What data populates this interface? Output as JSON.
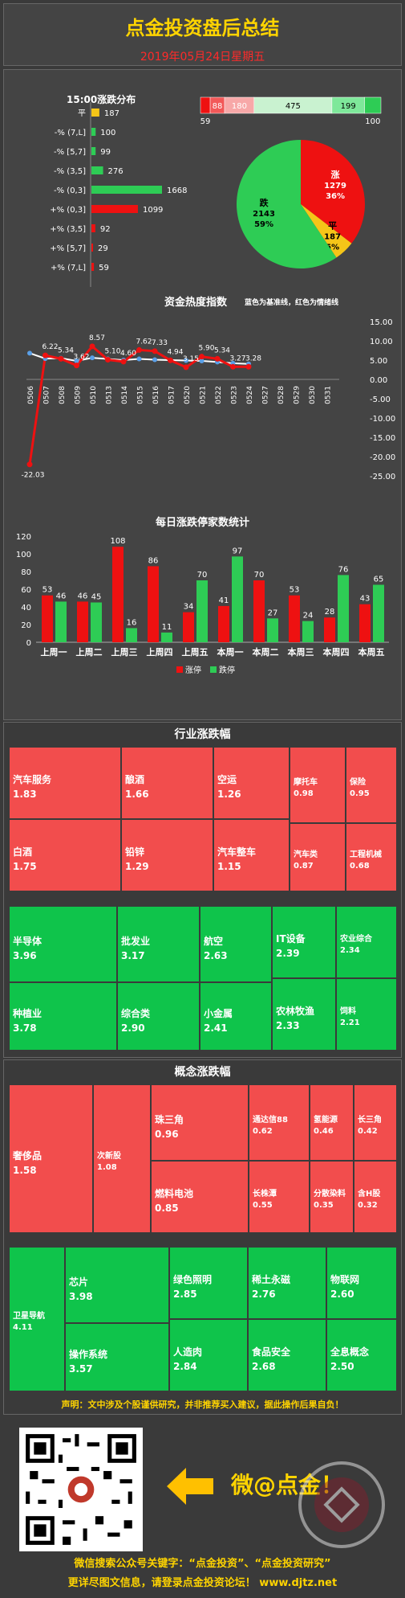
{
  "header": {
    "title": "点金投资盘后总结",
    "date": "2019年05月24日星期五"
  },
  "distribution": {
    "title": "15:00涨跌分布",
    "rows": [
      {
        "label": "平",
        "value": 187,
        "color": "#f5c518"
      },
      {
        "label": "-% (7,L]",
        "value": 100,
        "color": "#2ecc55"
      },
      {
        "label": "-% [5,7]",
        "value": 99,
        "color": "#2ecc55"
      },
      {
        "label": "-% (3,5]",
        "value": 276,
        "color": "#2ecc55"
      },
      {
        "label": "-% (0,3]",
        "value": 1668,
        "color": "#2ecc55"
      },
      {
        "label": "+% (0,3]",
        "value": 1099,
        "color": "#ee1111"
      },
      {
        "label": "+% (3,5]",
        "value": 92,
        "color": "#ee1111"
      },
      {
        "label": "+% [5,7]",
        "value": 29,
        "color": "#ee1111"
      },
      {
        "label": "+% (7,L]",
        "value": 59,
        "color": "#ee1111"
      }
    ],
    "stack": [
      {
        "value": 59,
        "color": "#ee1111",
        "label": "59",
        "pos": "below"
      },
      {
        "value": 88,
        "color": "#f25858",
        "label": "88",
        "pos": "inside"
      },
      {
        "value": 180,
        "color": "#f7a8a8",
        "label": "180",
        "pos": "inside"
      },
      {
        "value": 475,
        "color": "#c9f2d0",
        "label": "475",
        "pos": "inside"
      },
      {
        "value": 199,
        "color": "#7ee89a",
        "label": "199",
        "pos": "inside"
      },
      {
        "value": 100,
        "color": "#2ecc55",
        "label": "100",
        "pos": "below"
      }
    ],
    "pie": [
      {
        "label": "涨",
        "count": "1279",
        "pct": "36%",
        "value": 1279,
        "color": "#ee1111"
      },
      {
        "label": "平",
        "count": "187",
        "pct": "5%",
        "value": 187,
        "color": "#f5c518"
      },
      {
        "label": "跌",
        "count": "2143",
        "pct": "59%",
        "value": 2143,
        "color": "#2ecc55"
      }
    ]
  },
  "heat": {
    "title": "资金热度指数",
    "note": "蓝色为基准线，红色为情绪线",
    "dates": [
      "0506",
      "0507",
      "0508",
      "0509",
      "0510",
      "0513",
      "0514",
      "0515",
      "0516",
      "0517",
      "0520",
      "0521",
      "0522",
      "0523",
      "0524",
      "0527",
      "0528",
      "0529",
      "0530",
      "0531"
    ],
    "red": [
      -22.03,
      6.22,
      5.34,
      3.62,
      8.57,
      5.1,
      4.6,
      7.62,
      7.33,
      4.94,
      3.15,
      5.9,
      5.34,
      3.27,
      3.28
    ],
    "blue": [
      6.8,
      5.4,
      5.5,
      4.8,
      5.6,
      5.3,
      5.0,
      5.3,
      5.1,
      5.0,
      4.9,
      4.8,
      4.5,
      4.2,
      4.0
    ],
    "labels": [
      "-22.03",
      "6.22",
      "5.34",
      "3.62",
      "8.57",
      "5.10",
      "4.60",
      "7.62",
      "7.33",
      "4.94",
      "3.15",
      "5.90",
      "5.34",
      "3.27",
      "3.28"
    ],
    "yticks": [
      "15.00",
      "10.00",
      "5.00",
      "0.00",
      "-5.00",
      "-10.00",
      "-15.00",
      "-20.00",
      "-25.00"
    ]
  },
  "chart_data": {
    "type": "bar",
    "title": "每日涨跌停家数统计",
    "categories": [
      "上周一",
      "上周二",
      "上周三",
      "上周四",
      "上周五",
      "本周一",
      "本周二",
      "本周三",
      "本周四",
      "本周五"
    ],
    "series": [
      {
        "name": "涨停",
        "values": [
          53,
          46,
          108,
          86,
          34,
          41,
          70,
          53,
          28,
          43
        ],
        "color": "#ee1111"
      },
      {
        "name": "跌停",
        "values": [
          46,
          45,
          16,
          11,
          70,
          97,
          27,
          24,
          76,
          65
        ],
        "color": "#2ecc55"
      }
    ],
    "ylim": [
      0,
      120
    ],
    "yticks": [
      "0",
      "20",
      "40",
      "60",
      "80",
      "100",
      "120"
    ]
  },
  "industry": {
    "title": "行业涨跌幅",
    "up": [
      {
        "name": "汽车服务",
        "value": "1.83"
      },
      {
        "name": "白酒",
        "value": "1.75"
      },
      {
        "name": "酿酒",
        "value": "1.66"
      },
      {
        "name": "铅锌",
        "value": "1.29"
      },
      {
        "name": "空运",
        "value": "1.26"
      },
      {
        "name": "汽车整车",
        "value": "1.15"
      },
      {
        "name": "摩托车",
        "value": "0.98"
      },
      {
        "name": "汽车类",
        "value": "0.87"
      },
      {
        "name": "保险",
        "value": "0.95"
      },
      {
        "name": "工程机械",
        "value": "0.68"
      }
    ],
    "down": [
      {
        "name": "半导体",
        "value": "3.96"
      },
      {
        "name": "种植业",
        "value": "3.78"
      },
      {
        "name": "批发业",
        "value": "3.17"
      },
      {
        "name": "综合类",
        "value": "2.90"
      },
      {
        "name": "航空",
        "value": "2.63"
      },
      {
        "name": "小金属",
        "value": "2.41"
      },
      {
        "name": "IT设备",
        "value": "2.39"
      },
      {
        "name": "农林牧渔",
        "value": "2.33"
      },
      {
        "name": "农业综合",
        "value": "2.34"
      },
      {
        "name": "饲料",
        "value": "2.21"
      }
    ]
  },
  "concept": {
    "title": "概念涨跌幅",
    "up": [
      {
        "name": "奢侈品",
        "value": "1.58"
      },
      {
        "name": "次新股",
        "value": "1.08"
      },
      {
        "name": "珠三角",
        "value": "0.96"
      },
      {
        "name": "燃料电池",
        "value": "0.85"
      },
      {
        "name": "通达信88",
        "value": "0.62"
      },
      {
        "name": "长株潭",
        "value": "0.55"
      },
      {
        "name": "氢能源",
        "value": "0.46"
      },
      {
        "name": "分散染料",
        "value": "0.35"
      },
      {
        "name": "长三角",
        "value": "0.42"
      },
      {
        "name": "含H股",
        "value": "0.32"
      }
    ],
    "down": [
      {
        "name": "卫星导航",
        "value": "4.11"
      },
      {
        "name": "芯片",
        "value": "3.98"
      },
      {
        "name": "操作系统",
        "value": "3.57"
      },
      {
        "name": "绿色照明",
        "value": "2.85"
      },
      {
        "name": "人造肉",
        "value": "2.84"
      },
      {
        "name": "稀土永磁",
        "value": "2.76"
      },
      {
        "name": "食品安全",
        "value": "2.68"
      },
      {
        "name": "物联网",
        "value": "2.60"
      },
      {
        "name": "全息概念",
        "value": "2.50"
      }
    ]
  },
  "disclaimer": "声明：文中涉及个股谨供研究，并非推荐买入建议，据此操作后果自负！",
  "weibo": "微@点金！",
  "footer1": "微信搜索公众号关键字：“点金投资”、“点金投资研究”",
  "footer2": "更详尽图文信息，请登录点金投资论坛！ www.djtz.net"
}
